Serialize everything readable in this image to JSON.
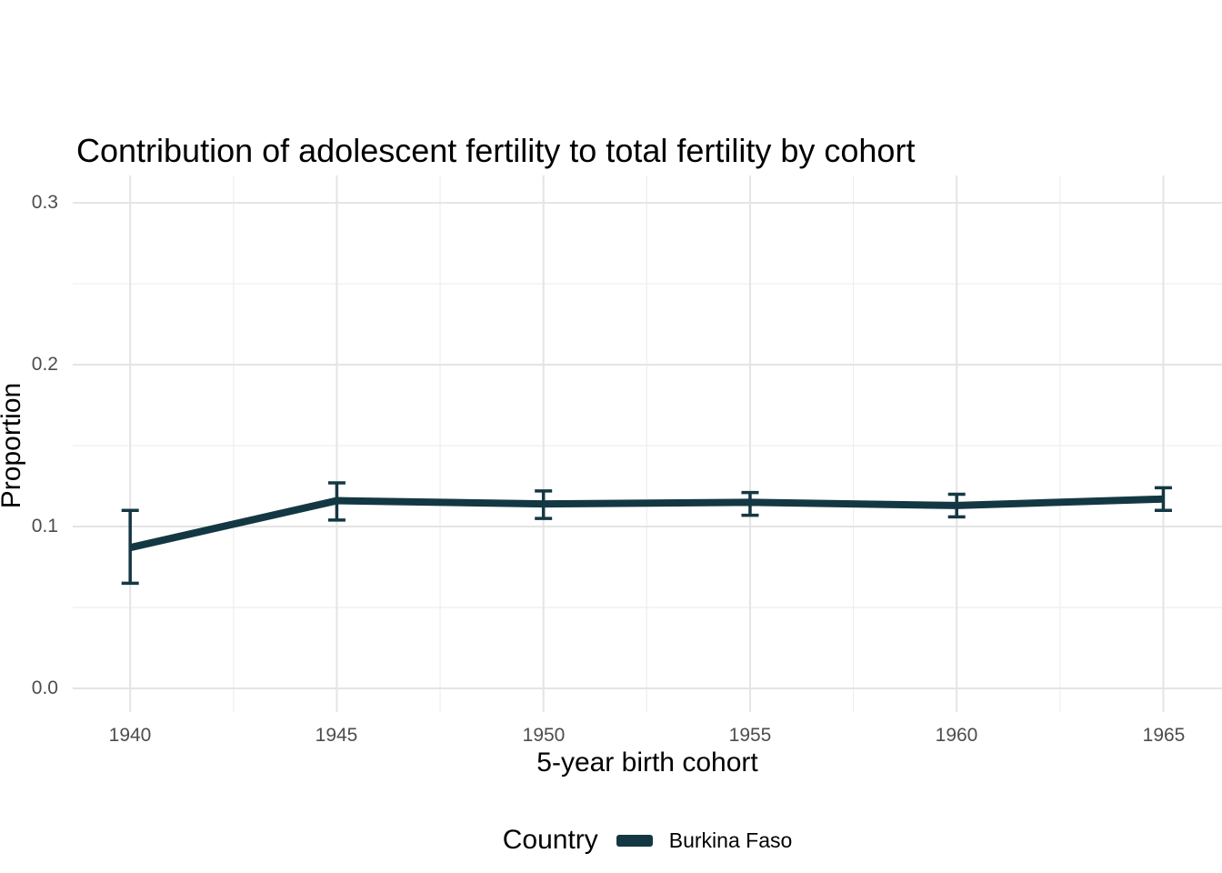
{
  "chart_data": {
    "type": "line",
    "title": "Contribution of adolescent fertility to total fertility by cohort",
    "xlabel": "5-year birth cohort",
    "ylabel": "Proportion",
    "x": [
      1940,
      1945,
      1950,
      1955,
      1960,
      1965
    ],
    "series": [
      {
        "name": "Burkina Faso",
        "color": "#143843",
        "values": [
          0.087,
          0.116,
          0.114,
          0.115,
          0.113,
          0.117
        ],
        "upper": [
          0.11,
          0.127,
          0.122,
          0.121,
          0.12,
          0.124
        ],
        "lower": [
          0.065,
          0.104,
          0.105,
          0.107,
          0.106,
          0.11
        ]
      }
    ],
    "xlim": [
      1938.61,
      1966.42
    ],
    "ylim": [
      -0.0146,
      0.3169
    ],
    "x_ticks": [
      1940,
      1945,
      1950,
      1955,
      1960,
      1965
    ],
    "x_tick_labels": [
      "1940",
      "1945",
      "1950",
      "1955",
      "1960",
      "1965"
    ],
    "x_minor": [
      1942.5,
      1947.5,
      1952.5,
      1957.5,
      1962.5
    ],
    "y_ticks": [
      0.0,
      0.1,
      0.2,
      0.3
    ],
    "y_tick_labels": [
      "0.0",
      "0.1",
      "0.2",
      "0.3"
    ],
    "y_minor": [
      0.05,
      0.15,
      0.25
    ],
    "grid": "major+minor",
    "legend_position": "bottom",
    "legend_title": "Country"
  },
  "colors": {
    "line": "#143843",
    "grid_major": "#e4e4e4",
    "grid_minor": "#eeeeee",
    "tick_text": "#4d4d4d",
    "title_text": "#000000",
    "background": "#ffffff"
  }
}
